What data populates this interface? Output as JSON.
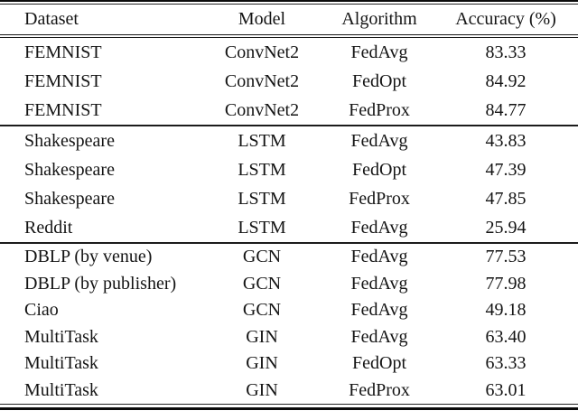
{
  "table": {
    "columns": [
      "Dataset",
      "Model",
      "Algorithm",
      "Accuracy (%)"
    ],
    "rows": [
      {
        "dataset": "FEMNIST",
        "model": "ConvNet2",
        "algorithm": "FedAvg",
        "accuracy": "83.33"
      },
      {
        "dataset": "FEMNIST",
        "model": "ConvNet2",
        "algorithm": "FedOpt",
        "accuracy": "84.92"
      },
      {
        "dataset": "FEMNIST",
        "model": "ConvNet2",
        "algorithm": "FedProx",
        "accuracy": "84.77"
      },
      {
        "dataset": "Shakespeare",
        "model": "LSTM",
        "algorithm": "FedAvg",
        "accuracy": "43.83"
      },
      {
        "dataset": "Shakespeare",
        "model": "LSTM",
        "algorithm": "FedOpt",
        "accuracy": "47.39"
      },
      {
        "dataset": "Shakespeare",
        "model": "LSTM",
        "algorithm": "FedProx",
        "accuracy": "47.85"
      },
      {
        "dataset": "Reddit",
        "model": "LSTM",
        "algorithm": "FedAvg",
        "accuracy": "25.94"
      },
      {
        "dataset": "DBLP (by venue)",
        "model": "GCN",
        "algorithm": "FedAvg",
        "accuracy": "77.53"
      },
      {
        "dataset": "DBLP (by publisher)",
        "model": "GCN",
        "algorithm": "FedAvg",
        "accuracy": "77.98"
      },
      {
        "dataset": "Ciao",
        "model": "GCN",
        "algorithm": "FedAvg",
        "accuracy": "49.18"
      },
      {
        "dataset": "MultiTask",
        "model": "GIN",
        "algorithm": "FedAvg",
        "accuracy": "63.40"
      },
      {
        "dataset": "MultiTask",
        "model": "GIN",
        "algorithm": "FedOpt",
        "accuracy": "63.33"
      },
      {
        "dataset": "MultiTask",
        "model": "GIN",
        "algorithm": "FedProx",
        "accuracy": "63.01"
      }
    ],
    "colors": {
      "text": "#141414",
      "rule": "#0b0b0b",
      "background": "#ffffff"
    }
  }
}
